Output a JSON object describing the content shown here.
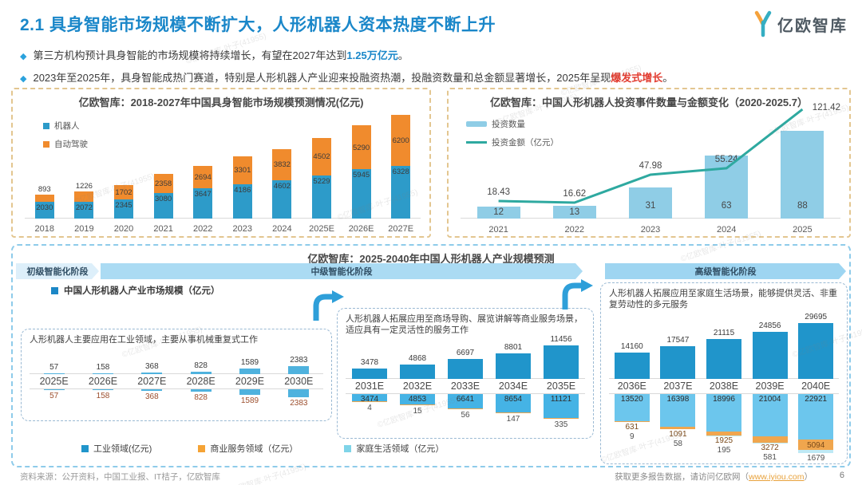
{
  "page": {
    "title": "2.1 具身智能市场规模不断扩大，人形机器人资本热度不断上升",
    "logo_text": "亿欧智库",
    "bullets": [
      {
        "pre": "第三方机构预计具身智能的市场规模将持续增长，有望在2027年达到",
        "highlight": "1.25万亿元",
        "post": "。",
        "highlight_color": "#1a87c9"
      },
      {
        "pre": "2023年至2025年，具身智能成热门赛道，特别是人形机器人产业迎来投融资热潮，投融资数量和总金额显著增长，2025年呈现",
        "highlight": "爆发式增长",
        "post": "。",
        "highlight_color": "#e23c30"
      }
    ],
    "footer": {
      "source": "资料来源：公开资料，中国工业报、IT桔子，亿欧智库",
      "cta_pre": "获取更多报告数据，请访问亿欧网（",
      "link_text": "www.iyiou.com",
      "cta_post": "）"
    },
    "page_number": "6",
    "watermark": "©亿欧智库·叶子(41955)"
  },
  "chart_data": [
    {
      "type": "bar",
      "subtype": "stacked",
      "title": "亿欧智库：2018-2027年中国具身智能市场规模预测情况(亿元)",
      "categories": [
        "2018",
        "2019",
        "2020",
        "2021",
        "2022",
        "2023",
        "2024",
        "2025E",
        "2026E",
        "2027E"
      ],
      "series": [
        {
          "name": "机器人",
          "color": "#2d9bc9",
          "values": [
            2030,
            2072,
            2345,
            3080,
            3647,
            4186,
            4602,
            5229,
            5945,
            6328
          ]
        },
        {
          "name": "自动驾驶",
          "color": "#f08b2d",
          "values": [
            893,
            1226,
            1702,
            2358,
            2694,
            3301,
            3832,
            4502,
            5290,
            6200
          ]
        }
      ],
      "ylim": [
        0,
        12528
      ],
      "legend_position": "top-left",
      "grid": false
    },
    {
      "type": "bar",
      "subtype": "bar+line",
      "title": "亿欧智库：中国人形机器人投资事件数量与金额变化（2020-2025.7）",
      "categories": [
        "2021",
        "2022",
        "2023",
        "2024",
        "2025"
      ],
      "bar_series": {
        "name": "投资数量",
        "color": "#8fcde6",
        "values": [
          12,
          13,
          31,
          63,
          88
        ]
      },
      "line_series": {
        "name": "投资金额（亿元）",
        "color": "#2ea9a0",
        "values": [
          18.43,
          16.62,
          47.98,
          55.24,
          121.42
        ]
      },
      "legend_position": "top-left",
      "grid": false
    },
    {
      "type": "bar",
      "subtype": "multi-stage-forecast",
      "title": "亿欧智库：2025-2040年中国人形机器人产业规模预测",
      "stages": [
        "初级智能化阶段",
        "中级智能化阶段",
        "高级智能化阶段"
      ],
      "series_label": "中国人形机器人产业市场规模（亿元）",
      "groups": [
        {
          "note": "人形机器人主要应用在工业领域，主要从事机械重复式工作",
          "categories": [
            "2025E",
            "2026E",
            "2027E",
            "2028E",
            "2029E",
            "2030E"
          ],
          "totals": [
            57,
            158,
            368,
            828,
            1589,
            2383
          ],
          "industrial": [
            57,
            158,
            368,
            828,
            1589,
            2383
          ]
        },
        {
          "note": "人形机器人拓展应用至商场导购、展览讲解等商业服务场景，适应具有一定灵活性的服务工作",
          "categories": [
            "2031E",
            "2032E",
            "2033E",
            "2034E",
            "2035E"
          ],
          "totals": [
            3478,
            4868,
            6697,
            8801,
            11456
          ],
          "industrial": [
            3474,
            4853,
            6641,
            8654,
            11121
          ],
          "commercial": [
            4,
            15,
            56,
            147,
            335
          ]
        },
        {
          "note": "人形机器人拓展应用至家庭生活场景，能够提供灵活、非重复劳动性的多元服务",
          "categories": [
            "2036E",
            "2037E",
            "2038E",
            "2039E",
            "2040E"
          ],
          "totals": [
            14160,
            17547,
            21115,
            24856,
            29695
          ],
          "industrial": [
            13520,
            16398,
            18996,
            21004,
            22921
          ],
          "commercial": [
            631,
            1091,
            1925,
            3272,
            5094
          ],
          "household": [
            9,
            58,
            195,
            581,
            1679
          ]
        }
      ],
      "legend": [
        {
          "label": "工业领域(亿元)",
          "color": "#2095cb"
        },
        {
          "label": "商业服务领域（亿元）",
          "color": "#f5a335"
        },
        {
          "label": "家庭生活领域（亿元）",
          "color": "#7fd4e8"
        }
      ],
      "colors": {
        "bar": "#2095cb",
        "mini": "#4fb2de",
        "industrial_hang": "#45b3e5",
        "industrial_light": "#6cc6ed",
        "commercial": "#f0a64e",
        "household": "#bfe9f5",
        "industrial_label_dark": "#9c4f2e"
      }
    }
  ]
}
